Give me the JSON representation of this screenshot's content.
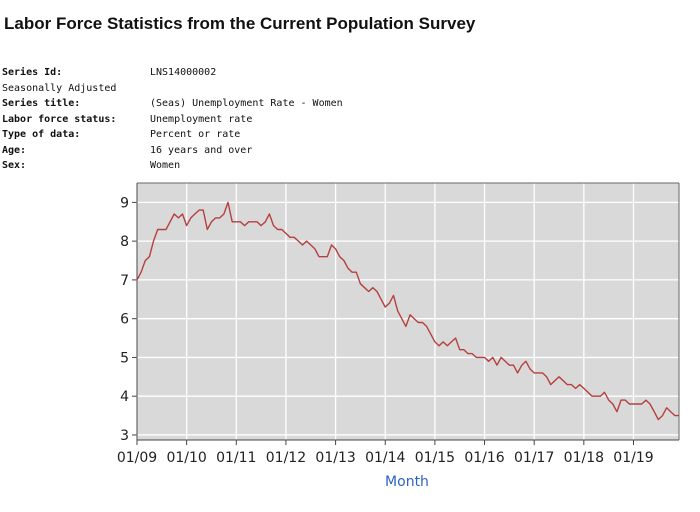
{
  "page": {
    "title": "Labor Force Statistics from the Current Population Survey"
  },
  "series_info": {
    "series_id_label": "Series Id:",
    "series_id": "LNS14000002",
    "seasonally_adjusted": "Seasonally Adjusted",
    "series_title_label": "Series title:",
    "series_title": "(Seas) Unemployment Rate - Women",
    "labor_force_status_label": "Labor force status:",
    "labor_force_status": "Unemployment rate",
    "type_of_data_label": "Type of data:",
    "type_of_data": "Percent or rate",
    "age_label": "Age:",
    "age": "16 years and over",
    "sex_label": "Sex:",
    "sex": "Women"
  },
  "chart_data": {
    "type": "line",
    "title": "",
    "xlabel": "Month",
    "ylabel": "",
    "ylim": [
      2.87,
      9.5
    ],
    "xlim": [
      "2009-01",
      "2019-12"
    ],
    "yticks": [
      3,
      4,
      5,
      6,
      7,
      8,
      9
    ],
    "xticks": [
      "01/09",
      "01/10",
      "01/11",
      "01/12",
      "01/13",
      "01/14",
      "01/15",
      "01/16",
      "01/17",
      "01/18",
      "01/19"
    ],
    "grid": true,
    "colors": {
      "plot_background": "#d9d9d9",
      "grid": "#ffffff",
      "line": "#b5403e",
      "xlabel": "#2e63c4"
    },
    "series": [
      {
        "values": [
          [
            "2009-01",
            7.0
          ],
          [
            "2009-02",
            7.2
          ],
          [
            "2009-03",
            7.5
          ],
          [
            "2009-04",
            7.6
          ],
          [
            "2009-05",
            8.0
          ],
          [
            "2009-06",
            8.3
          ],
          [
            "2009-07",
            8.3
          ],
          [
            "2009-08",
            8.3
          ],
          [
            "2009-09",
            8.5
          ],
          [
            "2009-10",
            8.7
          ],
          [
            "2009-11",
            8.6
          ],
          [
            "2009-12",
            8.7
          ],
          [
            "2010-01",
            8.4
          ],
          [
            "2010-02",
            8.6
          ],
          [
            "2010-03",
            8.7
          ],
          [
            "2010-04",
            8.8
          ],
          [
            "2010-05",
            8.8
          ],
          [
            "2010-06",
            8.3
          ],
          [
            "2010-07",
            8.5
          ],
          [
            "2010-08",
            8.6
          ],
          [
            "2010-09",
            8.6
          ],
          [
            "2010-10",
            8.7
          ],
          [
            "2010-11",
            9.0
          ],
          [
            "2010-12",
            8.5
          ],
          [
            "2011-01",
            8.5
          ],
          [
            "2011-02",
            8.5
          ],
          [
            "2011-03",
            8.4
          ],
          [
            "2011-04",
            8.5
          ],
          [
            "2011-05",
            8.5
          ],
          [
            "2011-06",
            8.5
          ],
          [
            "2011-07",
            8.4
          ],
          [
            "2011-08",
            8.5
          ],
          [
            "2011-09",
            8.7
          ],
          [
            "2011-10",
            8.4
          ],
          [
            "2011-11",
            8.3
          ],
          [
            "2011-12",
            8.3
          ],
          [
            "2012-01",
            8.2
          ],
          [
            "2012-02",
            8.1
          ],
          [
            "2012-03",
            8.1
          ],
          [
            "2012-04",
            8.0
          ],
          [
            "2012-05",
            7.9
          ],
          [
            "2012-06",
            8.0
          ],
          [
            "2012-07",
            7.9
          ],
          [
            "2012-08",
            7.8
          ],
          [
            "2012-09",
            7.6
          ],
          [
            "2012-10",
            7.6
          ],
          [
            "2012-11",
            7.6
          ],
          [
            "2012-12",
            7.9
          ],
          [
            "2013-01",
            7.8
          ],
          [
            "2013-02",
            7.6
          ],
          [
            "2013-03",
            7.5
          ],
          [
            "2013-04",
            7.3
          ],
          [
            "2013-05",
            7.2
          ],
          [
            "2013-06",
            7.2
          ],
          [
            "2013-07",
            6.9
          ],
          [
            "2013-08",
            6.8
          ],
          [
            "2013-09",
            6.7
          ],
          [
            "2013-10",
            6.8
          ],
          [
            "2013-11",
            6.7
          ],
          [
            "2013-12",
            6.5
          ],
          [
            "2014-01",
            6.3
          ],
          [
            "2014-02",
            6.4
          ],
          [
            "2014-03",
            6.6
          ],
          [
            "2014-04",
            6.2
          ],
          [
            "2014-05",
            6.0
          ],
          [
            "2014-06",
            5.8
          ],
          [
            "2014-07",
            6.1
          ],
          [
            "2014-08",
            6.0
          ],
          [
            "2014-09",
            5.9
          ],
          [
            "2014-10",
            5.9
          ],
          [
            "2014-11",
            5.8
          ],
          [
            "2014-12",
            5.6
          ],
          [
            "2015-01",
            5.4
          ],
          [
            "2015-02",
            5.3
          ],
          [
            "2015-03",
            5.4
          ],
          [
            "2015-04",
            5.3
          ],
          [
            "2015-05",
            5.4
          ],
          [
            "2015-06",
            5.5
          ],
          [
            "2015-07",
            5.2
          ],
          [
            "2015-08",
            5.2
          ],
          [
            "2015-09",
            5.1
          ],
          [
            "2015-10",
            5.1
          ],
          [
            "2015-11",
            5.0
          ],
          [
            "2015-12",
            5.0
          ],
          [
            "2016-01",
            5.0
          ],
          [
            "2016-02",
            4.9
          ],
          [
            "2016-03",
            5.0
          ],
          [
            "2016-04",
            4.8
          ],
          [
            "2016-05",
            5.0
          ],
          [
            "2016-06",
            4.9
          ],
          [
            "2016-07",
            4.8
          ],
          [
            "2016-08",
            4.8
          ],
          [
            "2016-09",
            4.6
          ],
          [
            "2016-10",
            4.8
          ],
          [
            "2016-11",
            4.9
          ],
          [
            "2016-12",
            4.7
          ],
          [
            "2017-01",
            4.6
          ],
          [
            "2017-02",
            4.6
          ],
          [
            "2017-03",
            4.6
          ],
          [
            "2017-04",
            4.5
          ],
          [
            "2017-05",
            4.3
          ],
          [
            "2017-06",
            4.4
          ],
          [
            "2017-07",
            4.5
          ],
          [
            "2017-08",
            4.4
          ],
          [
            "2017-09",
            4.3
          ],
          [
            "2017-10",
            4.3
          ],
          [
            "2017-11",
            4.2
          ],
          [
            "2017-12",
            4.3
          ],
          [
            "2018-01",
            4.2
          ],
          [
            "2018-02",
            4.1
          ],
          [
            "2018-03",
            4.0
          ],
          [
            "2018-04",
            4.0
          ],
          [
            "2018-05",
            4.0
          ],
          [
            "2018-06",
            4.1
          ],
          [
            "2018-07",
            3.9
          ],
          [
            "2018-08",
            3.8
          ],
          [
            "2018-09",
            3.6
          ],
          [
            "2018-10",
            3.9
          ],
          [
            "2018-11",
            3.9
          ],
          [
            "2018-12",
            3.8
          ],
          [
            "2019-01",
            3.8
          ],
          [
            "2019-02",
            3.8
          ],
          [
            "2019-03",
            3.8
          ],
          [
            "2019-04",
            3.9
          ],
          [
            "2019-05",
            3.8
          ],
          [
            "2019-06",
            3.6
          ],
          [
            "2019-07",
            3.4
          ],
          [
            "2019-08",
            3.5
          ],
          [
            "2019-09",
            3.7
          ],
          [
            "2019-10",
            3.6
          ],
          [
            "2019-11",
            3.5
          ],
          [
            "2019-12",
            3.5
          ]
        ]
      }
    ]
  }
}
